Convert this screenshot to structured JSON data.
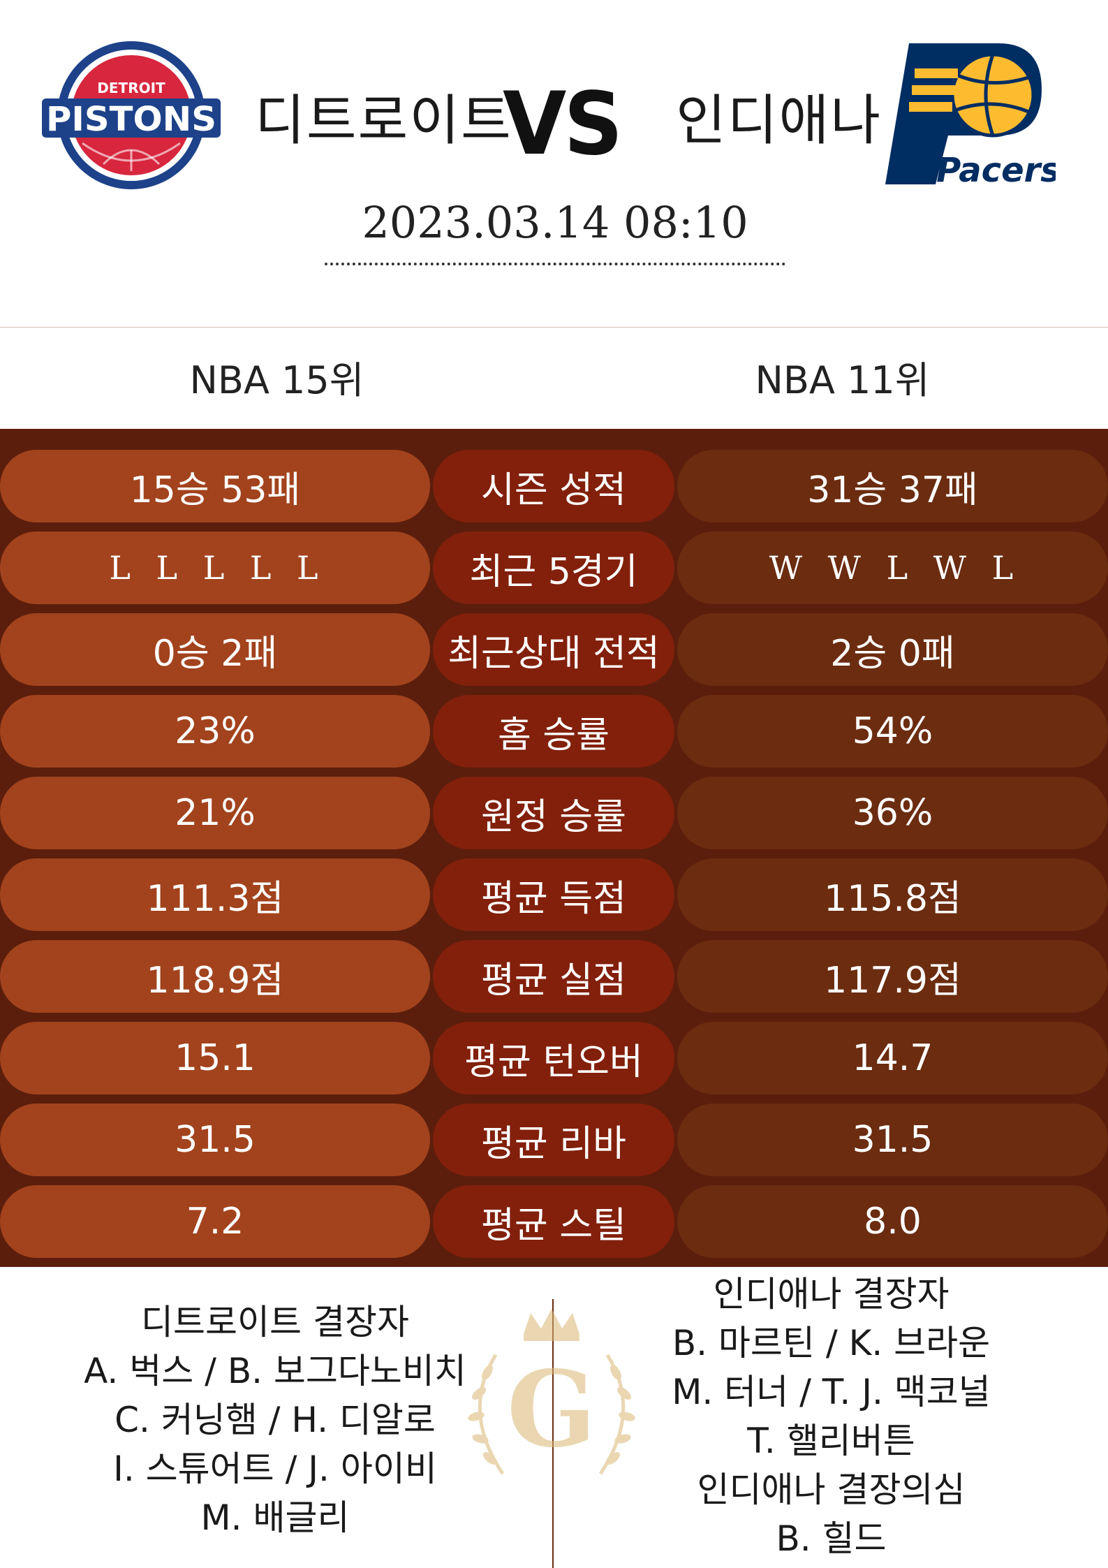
{
  "header": {
    "home_team": "디트로이트",
    "vs": "VS",
    "away_team": "인디애나",
    "datetime": "2023.03.14  08:10",
    "home_logo": {
      "top_text": "DETROIT",
      "main_text": "PISTONS",
      "colors": {
        "red": "#d7263d",
        "blue": "#1d428a"
      }
    },
    "away_logo": {
      "text": "Pacers",
      "colors": {
        "navy": "#002d62",
        "gold": "#fdbb30"
      }
    }
  },
  "ranks": {
    "home": "NBA 15위",
    "away": "NBA 11위"
  },
  "stats": [
    {
      "label": "시즌 성적",
      "home": "15승 53패",
      "away": "31승 37패"
    },
    {
      "label": "최근 5경기",
      "home": "L L L L L",
      "away": "W W L W L"
    },
    {
      "label": "최근상대 전적",
      "home": "0승 2패",
      "away": "2승 0패"
    },
    {
      "label": "홈 승률",
      "home": "23%",
      "away": "54%"
    },
    {
      "label": "원정 승률",
      "home": "21%",
      "away": "36%"
    },
    {
      "label": "평균 득점",
      "home": "111.3점",
      "away": "115.8점"
    },
    {
      "label": "평균 실점",
      "home": "118.9점",
      "away": "117.9점"
    },
    {
      "label": "평균 턴오버",
      "home": "15.1",
      "away": "14.7"
    },
    {
      "label": "평균 리바",
      "home": "31.5",
      "away": "31.5"
    },
    {
      "label": "평균 스틸",
      "home": "7.2",
      "away": "8.0"
    }
  ],
  "absentees": {
    "home": [
      "디트로이트 결장자",
      "A. 벅스 / B. 보그다노비치",
      "C. 커닝햄 / H. 디알로",
      "I. 스튜어트 / J. 아이비",
      "M. 배글리"
    ],
    "away": [
      "인디애나 결장자",
      "B. 마르틴 / K. 브라운",
      "M. 터너 / T. J. 맥코널",
      "T. 핼리버튼",
      "인디애나 결장의심",
      "B. 힐드"
    ]
  },
  "watermark": {
    "letter": "G",
    "color": "#d9b774"
  },
  "colors": {
    "stats_bg": "#5c1e0c",
    "home_pill": "#a2431d",
    "label_pill": "#82200b",
    "away_pill": "#6b2c10"
  }
}
